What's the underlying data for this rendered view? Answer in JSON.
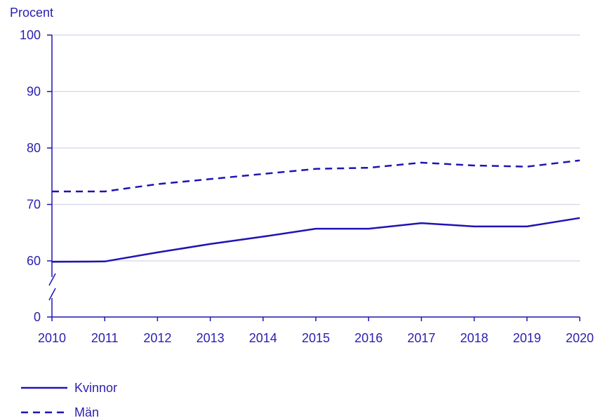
{
  "chart_data": {
    "type": "line",
    "title": "",
    "ylabel": "Procent",
    "xlabel": "",
    "x": [
      "2010",
      "2011",
      "2012",
      "2013",
      "2014",
      "2015",
      "2016",
      "2017",
      "2018",
      "2019",
      "2020"
    ],
    "ylim": [
      0,
      100
    ],
    "y_ticks": [
      "0",
      "60",
      "70",
      "80",
      "90",
      "100"
    ],
    "y_axis_break": true,
    "grid": "horizontal",
    "legend_position": "bottom-left",
    "series": [
      {
        "name": "Kvinnor",
        "style": "solid",
        "values": [
          59,
          59.4,
          61.5,
          63,
          64.3,
          65.7,
          65.7,
          66.7,
          66.1,
          66.1,
          67.6
        ]
      },
      {
        "name": "Män",
        "style": "dashed",
        "values": [
          72.3,
          72.3,
          73.6,
          74.5,
          75.4,
          76.3,
          76.5,
          77.4,
          76.9,
          76.7,
          77.8
        ]
      }
    ]
  },
  "colors": {
    "line": "#1e14b4",
    "grid": "#d4d4ea",
    "text": "#2a1fb0"
  }
}
